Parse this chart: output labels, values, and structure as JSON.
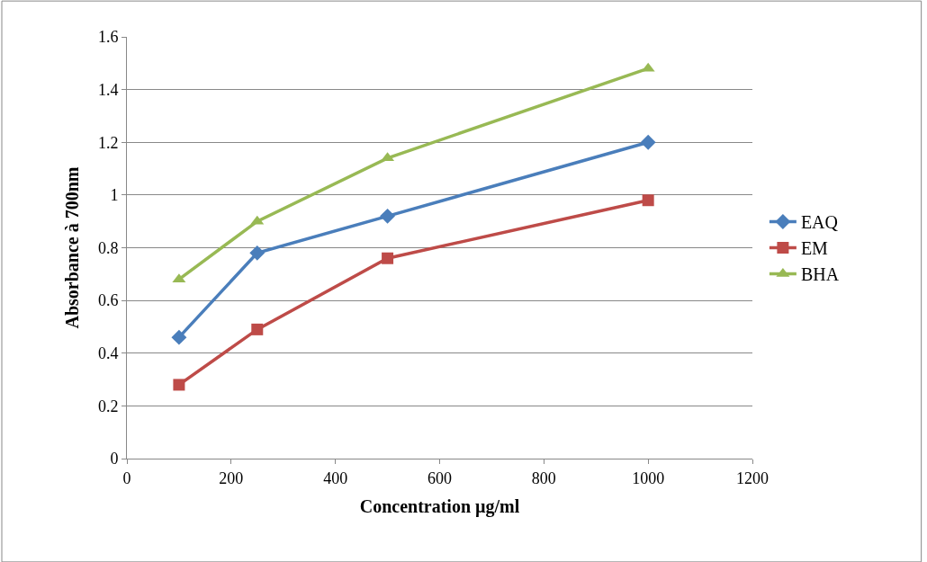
{
  "chart_data": {
    "type": "line",
    "xlabel": "Concentration µg/ml",
    "ylabel": "Absorbance à 700nm",
    "x": [
      100,
      250,
      500,
      1000
    ],
    "series": [
      {
        "name": "EAQ",
        "color": "#4a7ebb",
        "marker": "diamond",
        "values": [
          0.46,
          0.78,
          0.92,
          1.2
        ]
      },
      {
        "name": "EM",
        "color": "#be4b48",
        "marker": "square",
        "values": [
          0.28,
          0.49,
          0.76,
          0.98
        ]
      },
      {
        "name": "BHA",
        "color": "#98b954",
        "marker": "triangle",
        "values": [
          0.68,
          0.9,
          1.14,
          1.48
        ]
      }
    ],
    "xlim": [
      0,
      1200
    ],
    "xticks": [
      0,
      200,
      400,
      600,
      800,
      1000,
      1200
    ],
    "ylim": [
      0,
      1.6
    ],
    "yticks": [
      0,
      0.2,
      0.4,
      0.6,
      0.8,
      1,
      1.2,
      1.4,
      1.6
    ],
    "grid": "y",
    "legend": "right",
    "line_style": "solid"
  }
}
